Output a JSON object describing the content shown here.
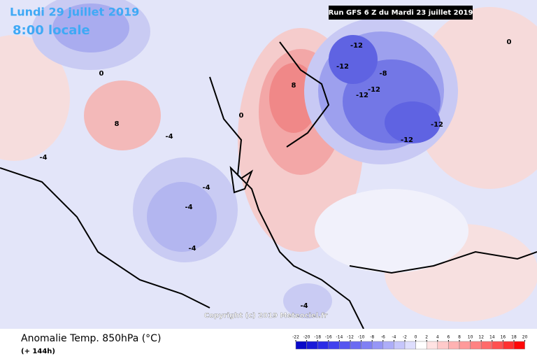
{
  "header": {
    "date": "Lundi 29 juillet 2019",
    "time": "8:00 locale",
    "run": "Run GFS 6 Z du Mardi 23 juillet 2019"
  },
  "footer": {
    "title": "Anomalie Temp. 850hPa (°C)",
    "lead": "(+ 144h)",
    "copyright": "Copyright (c) 2019 Meteociel.fr"
  },
  "map": {
    "contour_labels": [
      -12,
      -12,
      -12,
      -12,
      -8,
      -12,
      -12,
      8,
      8,
      -4,
      -4,
      -4,
      -4,
      0,
      -4,
      0,
      -4,
      0
    ]
  },
  "scale": {
    "ticks": [
      -22,
      -20,
      -18,
      -16,
      -14,
      -12,
      -10,
      -8,
      -6,
      -4,
      -2,
      0,
      2,
      4,
      6,
      8,
      10,
      12,
      14,
      16,
      18,
      20
    ],
    "colors": [
      "#0a0ac8",
      "#1a1ad8",
      "#2c2ce6",
      "#4040ee",
      "#5555f0",
      "#6a6af2",
      "#8080f4",
      "#9696f6",
      "#adadf8",
      "#c6c6fb",
      "#dedefd",
      "#ffffff",
      "#ffe2e2",
      "#ffcaca",
      "#ffb2b2",
      "#ff9a9a",
      "#ff8282",
      "#ff6a6a",
      "#ff5050",
      "#ff3030",
      "#ff0808"
    ]
  }
}
